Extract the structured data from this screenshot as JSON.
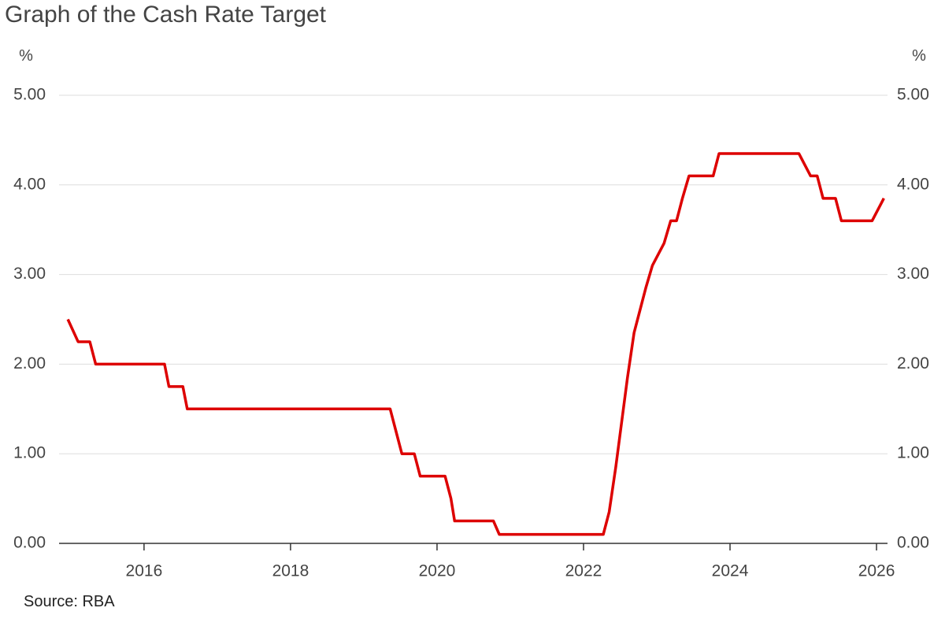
{
  "chart_data": {
    "type": "line",
    "title": "Graph of the Cash Rate Target",
    "y_unit": "%",
    "source": "Source: RBA",
    "x": [
      2014.96,
      2015.1,
      2015.26,
      2015.34,
      2016.28,
      2016.34,
      2016.53,
      2016.59,
      2019.36,
      2019.44,
      2019.52,
      2019.69,
      2019.77,
      2020.11,
      2020.19,
      2020.24,
      2020.77,
      2020.85,
      2022.27,
      2022.35,
      2022.44,
      2022.52,
      2022.6,
      2022.69,
      2022.77,
      2022.85,
      2022.94,
      2023.1,
      2023.19,
      2023.27,
      2023.35,
      2023.44,
      2023.77,
      2023.85,
      2024.94,
      2025.1,
      2025.19,
      2025.27,
      2025.44,
      2025.52,
      2025.94,
      2026.1
    ],
    "series": [
      {
        "color": "#dd0000",
        "values": [
          2.5,
          2.25,
          2.25,
          2.0,
          2.0,
          1.75,
          1.75,
          1.5,
          1.5,
          1.25,
          1.0,
          1.0,
          0.75,
          0.75,
          0.5,
          0.25,
          0.25,
          0.1,
          0.1,
          0.35,
          0.85,
          1.35,
          1.85,
          2.35,
          2.6,
          2.85,
          3.1,
          3.35,
          3.6,
          3.6,
          3.85,
          4.1,
          4.1,
          4.35,
          4.35,
          4.1,
          4.1,
          3.85,
          3.85,
          3.6,
          3.6,
          3.85
        ]
      }
    ],
    "xlim": [
      2014.84,
      2026.15
    ],
    "xticks": [
      2016,
      2018,
      2020,
      2022,
      2024,
      2026
    ],
    "ylim": [
      0,
      5
    ],
    "yticks": [
      {
        "value": 0,
        "label": "0.00"
      },
      {
        "value": 1,
        "label": "1.00"
      },
      {
        "value": 2,
        "label": "2.00"
      },
      {
        "value": 3,
        "label": "3.00"
      },
      {
        "value": 4,
        "label": "4.00"
      },
      {
        "value": 5,
        "label": "5.00"
      }
    ],
    "grid": true
  }
}
